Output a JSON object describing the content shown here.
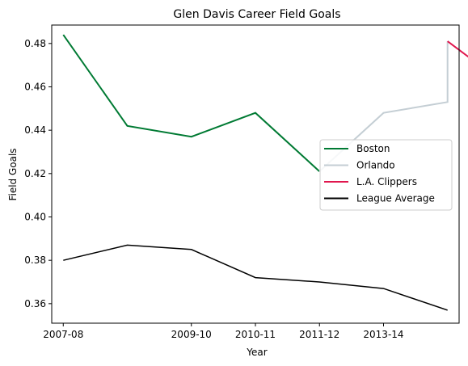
{
  "chart_data": {
    "type": "line",
    "title": "Glen Davis  Career Field Goals",
    "xlabel": "Year",
    "ylabel": "Field Goals",
    "x_tick_labels": [
      "2007-08",
      "2009-10",
      "2010-11",
      "2011-12",
      "2013-14"
    ],
    "x_tick_positions": [
      0,
      2,
      3,
      4,
      5
    ],
    "xlim": [
      -0.18,
      6.18
    ],
    "ylim": [
      0.351,
      0.4885
    ],
    "y_ticks": [
      0.36,
      0.38,
      0.4,
      0.42,
      0.44,
      0.46,
      0.48
    ],
    "y_tick_labels": [
      "0.36",
      "0.38",
      "0.40",
      "0.42",
      "0.44",
      "0.46",
      "0.48"
    ],
    "grid": false,
    "legend_position": "center-right",
    "series": [
      {
        "name": "Boston",
        "color": "#007A33",
        "points": [
          [
            0,
            0.484
          ],
          [
            1,
            0.442
          ],
          [
            2,
            0.437
          ],
          [
            3,
            0.448
          ],
          [
            4,
            0.421
          ]
        ]
      },
      {
        "name": "Orlando",
        "color": "#C4CED4",
        "points": [
          [
            4,
            0.421
          ],
          [
            5,
            0.448
          ],
          [
            6,
            0.453
          ],
          [
            6,
            0.481
          ]
        ]
      },
      {
        "name": "L.A. Clippers",
        "color": "#E0174E",
        "points": [
          [
            6,
            0.481
          ],
          [
            7,
            0.459
          ]
        ]
      },
      {
        "name": "League Average",
        "color": "#000000",
        "points": [
          [
            0,
            0.38
          ],
          [
            1,
            0.387
          ],
          [
            2,
            0.385
          ],
          [
            3,
            0.372
          ],
          [
            4,
            0.37
          ],
          [
            5,
            0.367
          ],
          [
            6,
            0.357
          ]
        ]
      }
    ]
  }
}
